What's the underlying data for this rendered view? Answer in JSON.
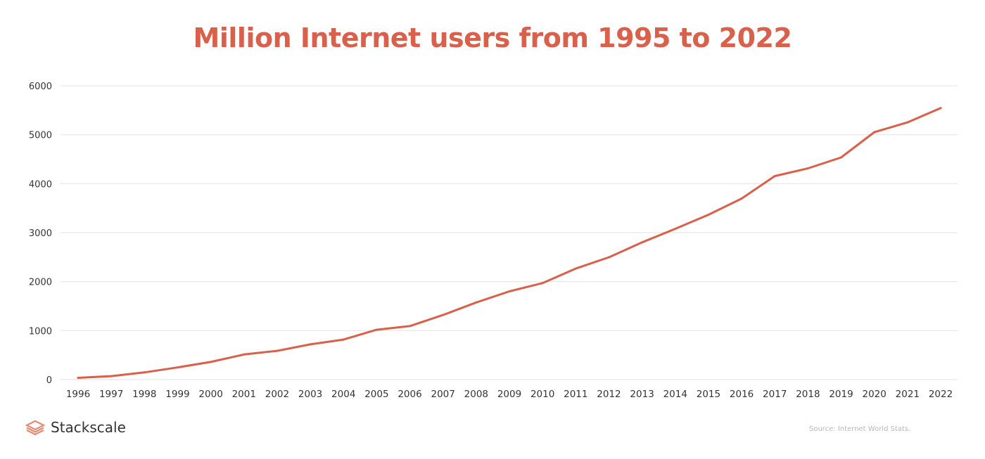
{
  "chart_data": {
    "type": "line",
    "title": "Million Internet users from 1995 to 2022",
    "xlabel": "",
    "ylabel": "",
    "categories": [
      "1996",
      "1997",
      "1998",
      "1999",
      "2000",
      "2001",
      "2002",
      "2003",
      "2004",
      "2005",
      "2006",
      "2007",
      "2008",
      "2009",
      "2010",
      "2011",
      "2012",
      "2013",
      "2014",
      "2015",
      "2016",
      "2017",
      "2018",
      "2019",
      "2020",
      "2021",
      "2022"
    ],
    "series": [
      {
        "name": "Million Internet users",
        "color": "#d9604a",
        "values": [
          36,
          70,
          147,
          248,
          361,
          513,
          587,
          719,
          817,
          1018,
          1093,
          1319,
          1574,
          1802,
          1971,
          2267,
          2497,
          2802,
          3079,
          3366,
          3696,
          4156,
          4313,
          4536,
          5053,
          5252,
          5544
        ]
      }
    ],
    "ylim": [
      0,
      6000
    ],
    "yticks": [
      "0",
      "1000",
      "2000",
      "3000",
      "4000",
      "5000",
      "6000"
    ],
    "ytick_values": [
      0,
      1000,
      2000,
      3000,
      4000,
      5000,
      6000
    ],
    "grid": true,
    "legend": "none"
  },
  "footer": {
    "brand_name": "Stackscale",
    "brand_icon": "stacked-layers-icon",
    "brand_color": "#e38b76",
    "source": "Source: Internet World Stats."
  },
  "colors": {
    "title": "#d9604a",
    "line": "#d9604a",
    "grid": "#e6e6e6",
    "text": "#333333"
  }
}
